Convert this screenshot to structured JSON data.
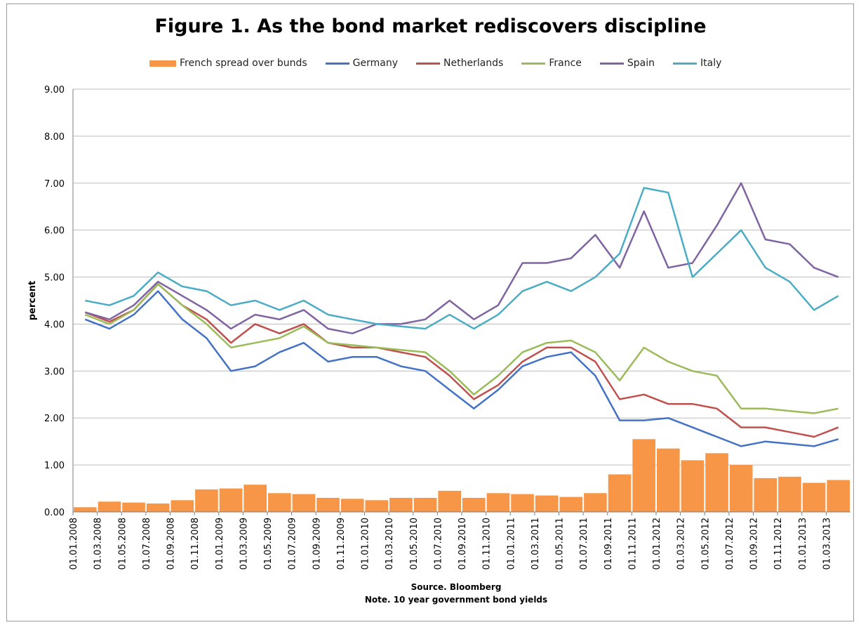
{
  "chart_data": {
    "type": "line",
    "title": "Figure 1. As the bond market rediscovers discipline",
    "xlabel": "Source. Bloomberg",
    "note": "Note. 10 year government bond yields",
    "ylabel": "percent",
    "ylim": [
      0,
      9
    ],
    "yticks": [
      "0.00",
      "1.00",
      "2.00",
      "3.00",
      "4.00",
      "5.00",
      "6.00",
      "7.00",
      "8.00",
      "9.00"
    ],
    "grid": true,
    "legend_position": "top",
    "x": [
      "01.01.2008",
      "01.03.2008",
      "01.05.2008",
      "01.07.2008",
      "01.09.2008",
      "01.11.2008",
      "01.01.2009",
      "01.03.2009",
      "01.05.2009",
      "01.07.2009",
      "01.09.2009",
      "01.11.2009",
      "01.01.2010",
      "01.03.2010",
      "01.05.2010",
      "01.07.2010",
      "01.09.2010",
      "01.11.2010",
      "01.01.2011",
      "01.03.2011",
      "01.05.2011",
      "01.07.2011",
      "01.09.2011",
      "01.11.2011",
      "01.01.2012",
      "01.03.2012",
      "01.05.2012",
      "01.07.2012",
      "01.09.2012",
      "01.11.2012",
      "01.01.2013",
      "01.03.2013"
    ],
    "series": [
      {
        "name": "French spread over bunds",
        "type": "bar",
        "color": "#f79646",
        "values": [
          0.1,
          0.22,
          0.2,
          0.18,
          0.25,
          0.48,
          0.5,
          0.58,
          0.4,
          0.38,
          0.3,
          0.28,
          0.25,
          0.3,
          0.3,
          0.45,
          0.3,
          0.4,
          0.38,
          0.35,
          0.32,
          0.4,
          0.8,
          1.55,
          1.35,
          1.1,
          1.25,
          1.0,
          0.72,
          0.75,
          0.62,
          0.68
        ]
      },
      {
        "name": "Germany",
        "type": "line",
        "color": "#4472c4",
        "values": [
          4.1,
          3.9,
          4.2,
          4.7,
          4.1,
          3.7,
          3.0,
          3.1,
          3.4,
          3.6,
          3.2,
          3.3,
          3.3,
          3.1,
          3.0,
          2.6,
          2.2,
          2.6,
          3.1,
          3.3,
          3.4,
          2.9,
          1.95,
          1.95,
          2.0,
          1.8,
          1.6,
          1.4,
          1.5,
          1.45,
          1.4,
          1.55
        ]
      },
      {
        "name": "Netherlands",
        "type": "line",
        "color": "#c0504d",
        "values": [
          4.25,
          4.05,
          4.3,
          4.85,
          4.4,
          4.1,
          3.6,
          4.0,
          3.8,
          4.0,
          3.6,
          3.5,
          3.5,
          3.4,
          3.3,
          2.9,
          2.4,
          2.7,
          3.2,
          3.5,
          3.5,
          3.2,
          2.4,
          2.5,
          2.3,
          2.3,
          2.2,
          1.8,
          1.8,
          1.7,
          1.6,
          1.8
        ]
      },
      {
        "name": "France",
        "type": "line",
        "color": "#9bbb59",
        "values": [
          4.2,
          4.0,
          4.3,
          4.85,
          4.4,
          4.0,
          3.5,
          3.6,
          3.7,
          3.95,
          3.6,
          3.55,
          3.5,
          3.45,
          3.4,
          3.0,
          2.5,
          2.9,
          3.4,
          3.6,
          3.65,
          3.4,
          2.8,
          3.5,
          3.2,
          3.0,
          2.9,
          2.2,
          2.2,
          2.15,
          2.1,
          2.2
        ]
      },
      {
        "name": "Spain",
        "type": "line",
        "color": "#8064a2",
        "values": [
          4.25,
          4.1,
          4.4,
          4.9,
          4.6,
          4.3,
          3.9,
          4.2,
          4.1,
          4.3,
          3.9,
          3.8,
          4.0,
          4.0,
          4.1,
          4.5,
          4.1,
          4.4,
          5.3,
          5.3,
          5.4,
          5.9,
          5.2,
          6.4,
          5.2,
          5.3,
          6.1,
          7.0,
          5.8,
          5.7,
          5.2,
          5.0
        ]
      },
      {
        "name": "Italy",
        "type": "line",
        "color": "#4bacc6",
        "values": [
          4.5,
          4.4,
          4.6,
          5.1,
          4.8,
          4.7,
          4.4,
          4.5,
          4.3,
          4.5,
          4.2,
          4.1,
          4.0,
          3.95,
          3.9,
          4.2,
          3.9,
          4.2,
          4.7,
          4.9,
          4.7,
          5.0,
          5.5,
          6.9,
          6.8,
          5.0,
          5.5,
          6.0,
          5.2,
          4.9,
          4.3,
          4.6
        ]
      }
    ]
  }
}
